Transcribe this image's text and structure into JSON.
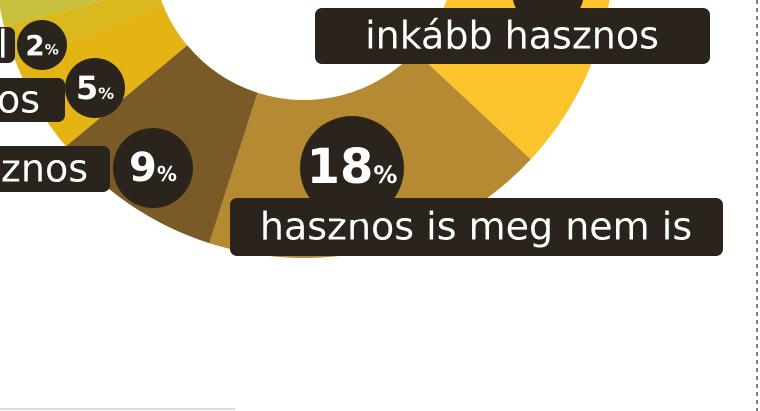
{
  "chart_data": {
    "type": "donut",
    "categories": [
      "inkább hasznos",
      "hasznos is meg nem is",
      "asznos",
      "nos",
      "l"
    ],
    "values": [
      36,
      18,
      9,
      5,
      2
    ],
    "value_unit": "%",
    "colors": [
      "#fcc42c",
      "#b68a32",
      "#7a5a26",
      "#e3b414",
      "#dab91f"
    ]
  }
}
